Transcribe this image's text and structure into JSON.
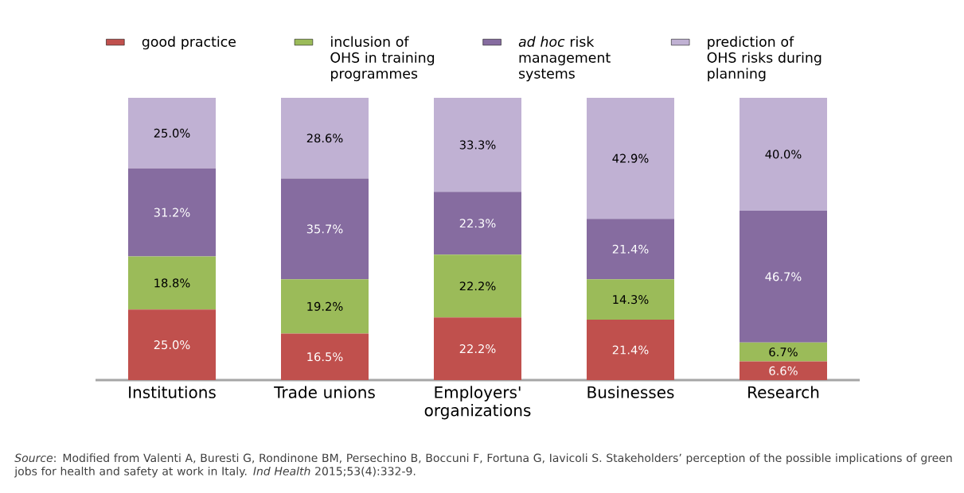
{
  "chart_data": {
    "type": "bar",
    "stacked": true,
    "categories": [
      "Institutions",
      "Trade unions",
      "Employers' organizations",
      "Businesses",
      "Research"
    ],
    "series": [
      {
        "name": "good practice",
        "color": "#c0504d",
        "values": [
          25.0,
          16.5,
          22.2,
          21.4,
          6.6
        ],
        "value_labels": [
          "25.0%",
          "16.5%",
          "22.2%",
          "21.4%",
          "6.6%"
        ]
      },
      {
        "name": "inclusion of OHS in training programmes",
        "color": "#9bbb59",
        "values": [
          18.8,
          19.2,
          22.2,
          14.3,
          6.7
        ],
        "value_labels": [
          "18.8%",
          "19.2%",
          "22.2%",
          "14.3%",
          "6.7%"
        ]
      },
      {
        "name": "*ad hoc* risk management systems",
        "color": "#866ca0",
        "values": [
          31.2,
          35.7,
          22.3,
          21.4,
          46.7
        ],
        "value_labels": [
          "31.2%",
          "35.7%",
          "22.3%",
          "21.4%",
          "46.7%"
        ]
      },
      {
        "name": "prediction of OHS risks during planning",
        "color": "#c0b1d3",
        "values": [
          25.0,
          28.6,
          33.3,
          42.9,
          40.0
        ],
        "value_labels": [
          "25.0%",
          "28.6%",
          "33.3%",
          "42.9%",
          "40.0%"
        ]
      }
    ],
    "legend": "top",
    "annotations": [
      "*Source*: Modified from Valenti A, Buresti G, Rondinone BM, Persechino B, Boccuni F, Fortuna G, Iavicoli S. Stakeholders’ perception of the possible implications of green jobs for health and safety at work in Italy. *Ind Health* 2015;53(4):332-9."
    ]
  }
}
